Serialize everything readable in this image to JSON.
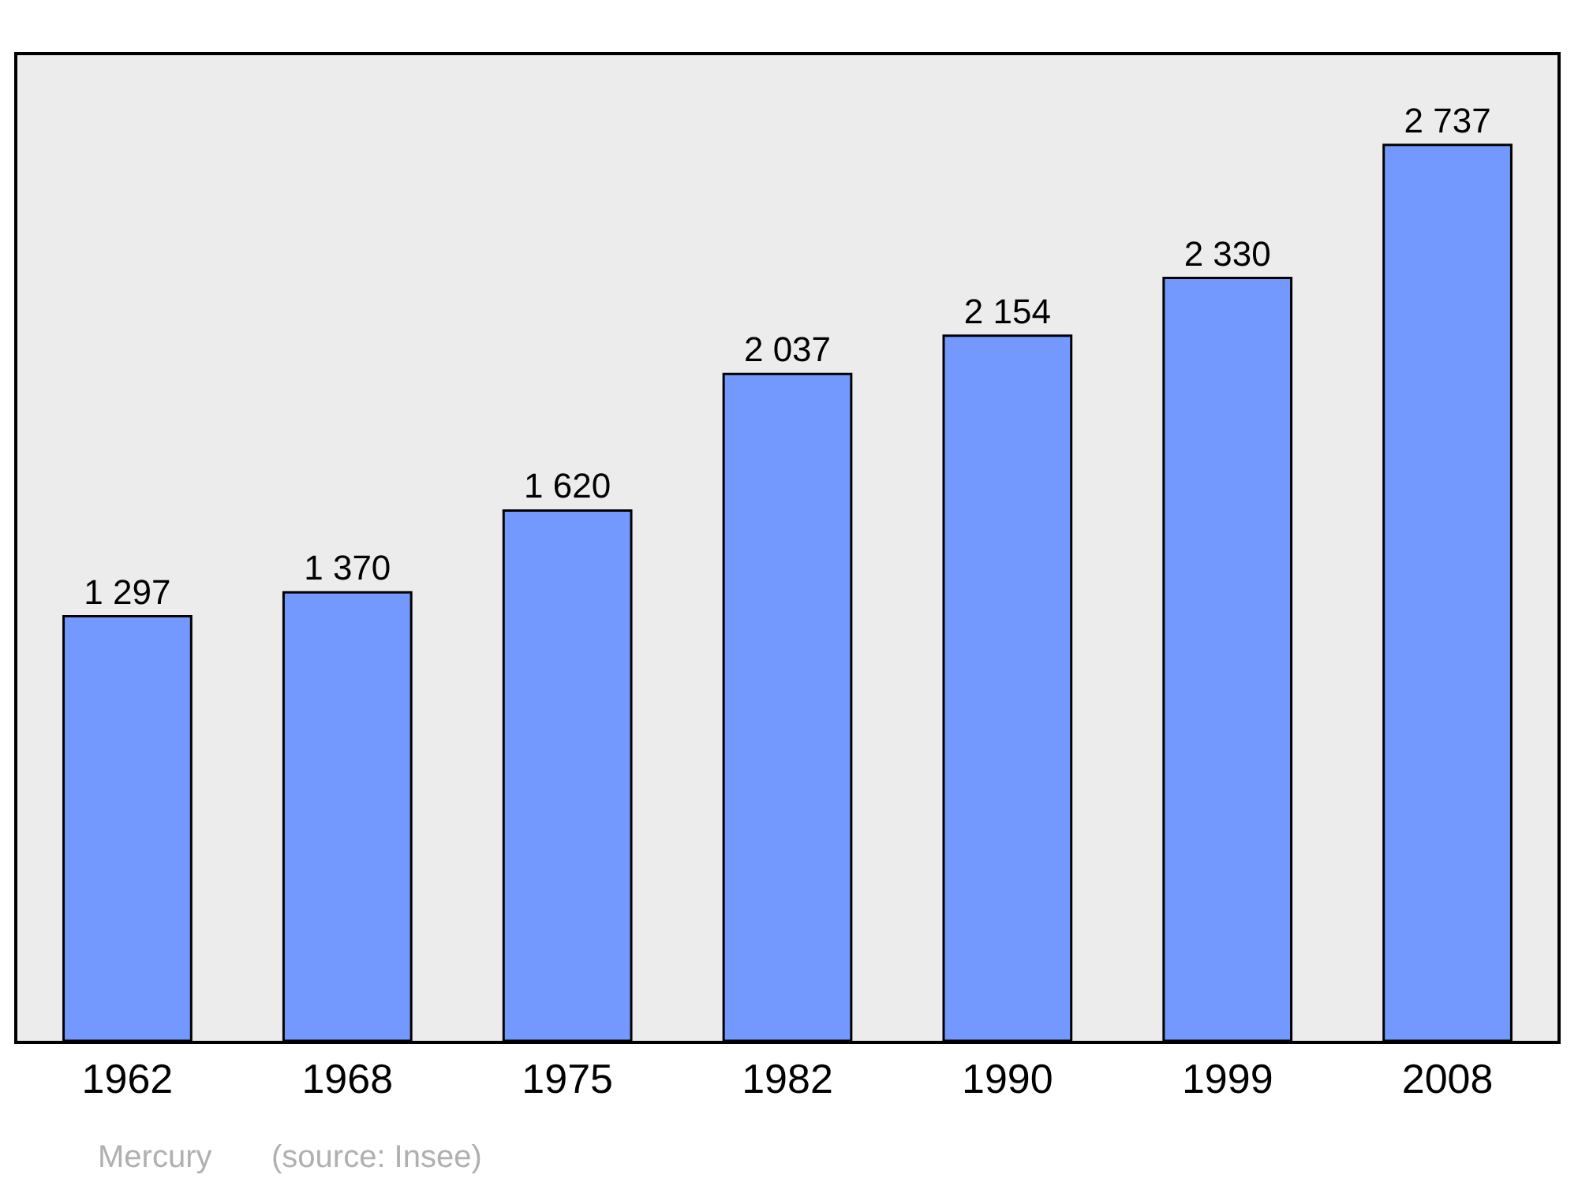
{
  "chart_data": {
    "type": "bar",
    "categories": [
      "1962",
      "1968",
      "1975",
      "1982",
      "1990",
      "1999",
      "2008"
    ],
    "values": [
      1297,
      1370,
      1620,
      2037,
      2154,
      2330,
      2737
    ],
    "value_labels": [
      "1 297",
      "1 370",
      "1 620",
      "2 037",
      "2 154",
      "2 330",
      "2 737"
    ],
    "color": "#7399ff",
    "grid": false,
    "legend": false,
    "tick_labels": "x",
    "annotations": [
      "Mercury",
      "(source: Insee)"
    ]
  }
}
